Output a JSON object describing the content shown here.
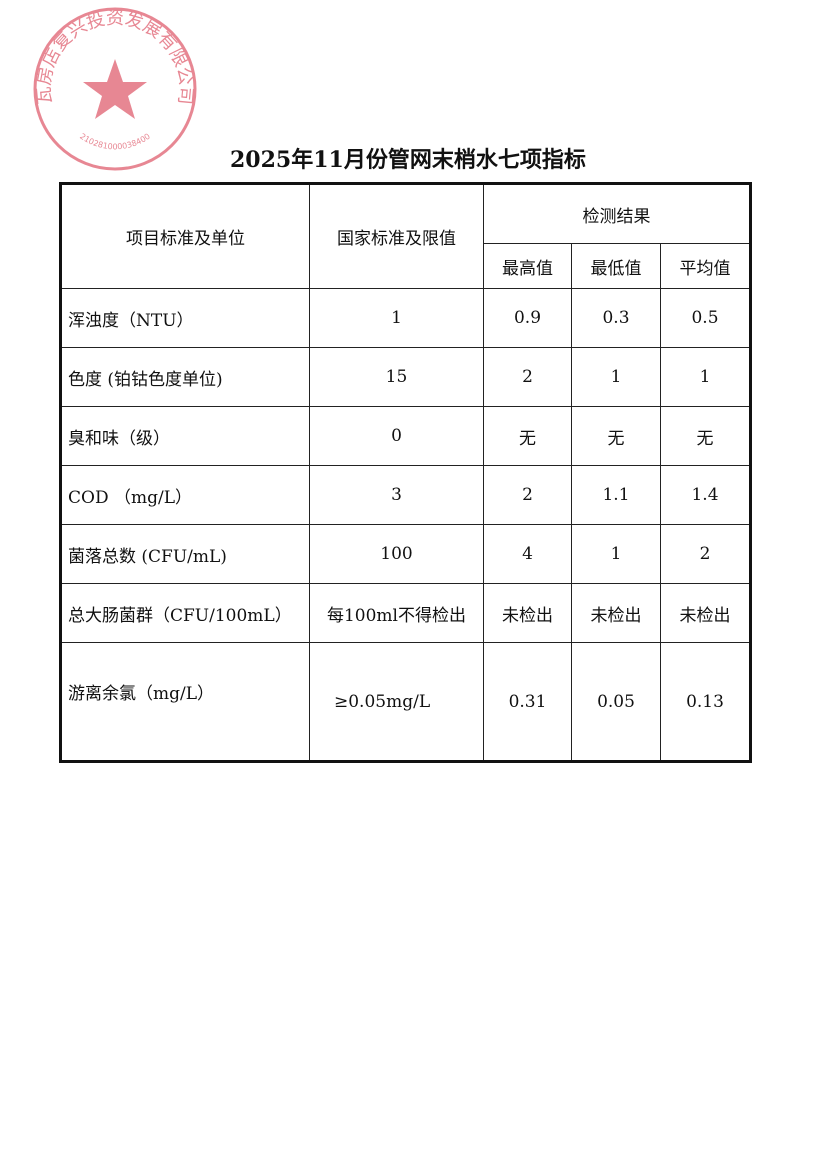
{
  "title": "2025年11月份管网末梢水七项指标",
  "stamp": {
    "text": "瓦房店复兴投资发展有限公司",
    "number": "210281000038400",
    "color": "#e06070"
  },
  "table": {
    "header": {
      "item": "项目标准及单位",
      "standard": "国家标准及限值",
      "results": "检测结果",
      "max": "最高值",
      "min": "最低值",
      "avg": "平均值"
    },
    "rows": [
      {
        "item": "浑浊度（NTU）",
        "standard": "1",
        "max": "0.9",
        "min": "0.3",
        "avg": "0.5"
      },
      {
        "item": "色度 (铂钴色度单位)",
        "standard": "15",
        "max": "2",
        "min": "1",
        "avg": "1"
      },
      {
        "item": "臭和味（级）",
        "standard": "0",
        "max": "无",
        "min": "无",
        "avg": "无"
      },
      {
        "item": "COD （mg/L）",
        "standard": "3",
        "max": "2",
        "min": "1.1",
        "avg": "1.4"
      },
      {
        "item": "菌落总数 (CFU/mL)",
        "standard": "100",
        "max": "4",
        "min": "1",
        "avg": "2"
      },
      {
        "item": "总大肠菌群（CFU/100mL）",
        "standard": "每100ml不得检出",
        "max": "未检出",
        "min": "未检出",
        "avg": "未检出"
      },
      {
        "item": "游离余氯（mg/L）",
        "standard": "≥0.05mg/L",
        "max": "0.31",
        "min": "0.05",
        "avg": "0.13"
      }
    ]
  }
}
